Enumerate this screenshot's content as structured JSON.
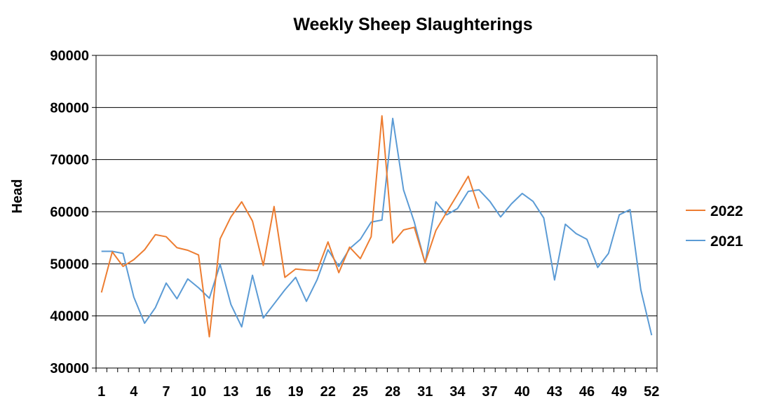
{
  "chart_data": {
    "type": "line",
    "title": "Weekly Sheep Slaughterings",
    "xlabel": "",
    "ylabel": "Head",
    "ylim": [
      30000,
      90000
    ],
    "yticks": [
      30000,
      40000,
      50000,
      60000,
      70000,
      80000,
      90000
    ],
    "xlim": [
      1,
      52
    ],
    "xticks": [
      1,
      4,
      7,
      10,
      13,
      16,
      19,
      22,
      25,
      28,
      31,
      34,
      37,
      40,
      43,
      46,
      49,
      52
    ],
    "grid": "horizontal",
    "legend_position": "right",
    "series": [
      {
        "name": "2022",
        "color": "#ED7D31",
        "x": [
          1,
          2,
          3,
          4,
          5,
          6,
          7,
          8,
          9,
          10,
          11,
          12,
          13,
          14,
          15,
          16,
          17,
          18,
          19,
          20,
          21,
          22,
          23,
          24,
          25,
          26,
          27,
          28,
          29,
          30,
          31,
          32,
          33,
          34,
          35,
          36
        ],
        "values": [
          44500,
          52300,
          49500,
          50800,
          52700,
          55600,
          55200,
          53100,
          52600,
          51700,
          36000,
          54800,
          59000,
          61900,
          58200,
          49700,
          61000,
          47400,
          49000,
          48800,
          48700,
          54200,
          48300,
          53200,
          51000,
          55200,
          78400,
          54000,
          56500,
          57000,
          50200,
          56400,
          59900,
          63300,
          66800,
          60600
        ]
      },
      {
        "name": "2021",
        "color": "#5B9BD5",
        "x": [
          1,
          2,
          3,
          4,
          5,
          6,
          7,
          8,
          9,
          10,
          11,
          12,
          13,
          14,
          15,
          16,
          17,
          18,
          19,
          20,
          21,
          22,
          23,
          24,
          25,
          26,
          27,
          28,
          29,
          30,
          31,
          32,
          33,
          34,
          35,
          36,
          37,
          38,
          39,
          40,
          41,
          42,
          43,
          44,
          45,
          46,
          47,
          48,
          49,
          50,
          51,
          52
        ],
        "values": [
          52400,
          52400,
          52000,
          43600,
          38600,
          41600,
          46300,
          43300,
          47100,
          45400,
          43400,
          49900,
          42200,
          37900,
          47800,
          39600,
          42300,
          45000,
          47400,
          42800,
          47000,
          52700,
          49500,
          52900,
          54700,
          58000,
          58400,
          77900,
          64200,
          58000,
          50100,
          61900,
          59400,
          60600,
          63900,
          64200,
          62000,
          59000,
          61500,
          63500,
          62000,
          58800,
          46900,
          57600,
          55800,
          54700,
          49300,
          52000,
          59400,
          60400,
          45000,
          36300
        ]
      }
    ]
  }
}
